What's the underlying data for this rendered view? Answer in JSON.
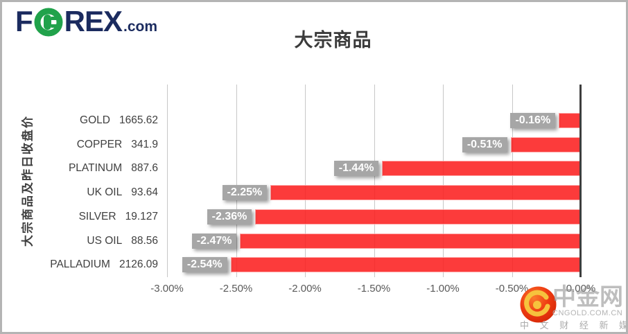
{
  "header": {
    "brand_part1": "F",
    "brand_part2": "REX",
    "brand_suffix": ".com"
  },
  "chart_data": {
    "type": "bar",
    "orientation": "horizontal",
    "title": "大宗商品",
    "ylabel": "大宗商品及昨日收盘价",
    "xlabel": "",
    "xlim": [
      -3,
      0
    ],
    "x_ticks": [
      "-3.00%",
      "-2.50%",
      "-2.00%",
      "-1.50%",
      "-1.00%",
      "-0.50%",
      "0.00%"
    ],
    "grid": true,
    "legend": false,
    "categories": [
      "GOLD",
      "COPPER",
      "PLATINUM",
      "UK OIL",
      "SILVER",
      "US OIL",
      "PALLADIUM"
    ],
    "close_prices": [
      "1665.62",
      "341.9",
      "887.6",
      "93.64",
      "19.127",
      "88.56",
      "2126.09"
    ],
    "series": [
      {
        "name": "pct_change",
        "values": [
          -0.16,
          -0.51,
          -1.44,
          -2.25,
          -2.36,
          -2.47,
          -2.54
        ]
      }
    ],
    "data_labels": [
      "-0.16%",
      "-0.51%",
      "-1.44%",
      "-2.25%",
      "-2.36%",
      "-2.47%",
      "-2.54%"
    ],
    "bar_color": "rgba(252,32,32,0.88)",
    "label_bg": "#a6a6a6",
    "grid_color": "#c7c7c7",
    "axis_line_color": "#3d3d3d"
  },
  "watermark": {
    "name": "中金网",
    "domain": "CNGOLD.COM.CN",
    "tagline": "中 文 财 经 新 媒 体"
  },
  "colors": {
    "brand_navy": "#1b2b5f",
    "brand_green": "#21a24b",
    "wm_red": "#e23212",
    "wm_gold": "#f6c33d"
  }
}
